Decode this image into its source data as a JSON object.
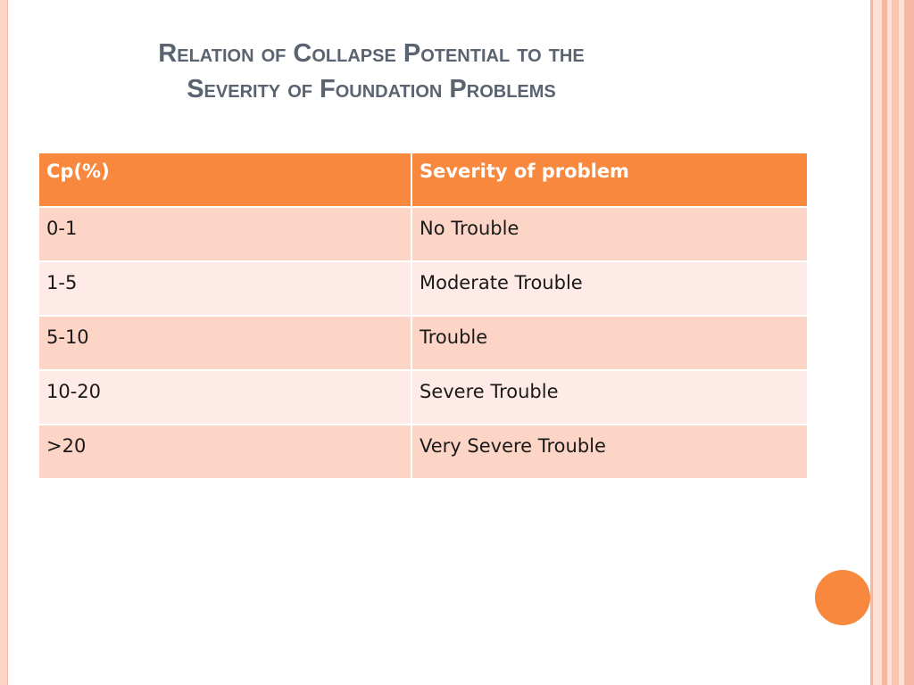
{
  "slide": {
    "title_line1": "Relation of Collapse Potential to the",
    "title_line2": "Severity of Foundation Problems"
  },
  "table": {
    "headers": [
      "Cp(%)",
      "Severity of problem"
    ],
    "rows": [
      [
        "0-1",
        "No Trouble"
      ],
      [
        "1-5",
        "Moderate Trouble"
      ],
      [
        "5-10",
        "Trouble"
      ],
      [
        "10-20",
        "Severe Trouble"
      ],
      [
        ">20",
        "Very Severe Trouble"
      ]
    ]
  },
  "colors": {
    "accent": "#f8883e",
    "row_odd": "#fdd5c6",
    "row_even": "#feeae6",
    "title": "#5a6370",
    "border_pale": "#fde1d5",
    "border_dark": "#f7b8a3"
  }
}
